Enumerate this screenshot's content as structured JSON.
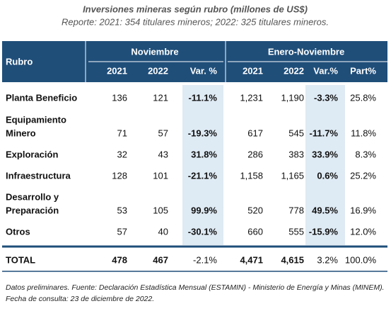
{
  "header": {
    "title": "Inversiones mineras según rubro (millones de US$)",
    "subtitle": "Reporte: 2021: 354 titulares mineros; 2022: 325 titulares mineros."
  },
  "table": {
    "group_headers": [
      "Noviembre",
      "Enero-Noviembre"
    ],
    "columns": [
      "Rubro",
      "2021",
      "2022",
      "Var. %",
      "2021",
      "2022",
      "Var.%",
      "Part%"
    ],
    "rows": [
      {
        "label": [
          "Planta Beneficio"
        ],
        "cells": [
          "136",
          "121",
          "-11.1%",
          "1,231",
          "1,190",
          "-3.3%",
          "25.8%"
        ]
      },
      {
        "label": [
          "Equipamiento",
          "Minero"
        ],
        "cells": [
          "71",
          "57",
          "-19.3%",
          "617",
          "545",
          "-11.7%",
          "11.8%"
        ]
      },
      {
        "label": [
          "Exploración"
        ],
        "cells": [
          "32",
          "43",
          "31.8%",
          "286",
          "383",
          "33.9%",
          "8.3%"
        ]
      },
      {
        "label": [
          "Infraestructura"
        ],
        "cells": [
          "128",
          "101",
          "-21.1%",
          "1,158",
          "1,165",
          "0.6%",
          "25.2%"
        ]
      },
      {
        "label": [
          "Desarrollo y",
          "Preparación"
        ],
        "cells": [
          "53",
          "105",
          "99.9%",
          "520",
          "778",
          "49.5%",
          "16.9%"
        ]
      },
      {
        "label": [
          "Otros"
        ],
        "cells": [
          "57",
          "40",
          "-30.1%",
          "660",
          "555",
          "-15.9%",
          "12.0%"
        ]
      }
    ],
    "total": {
      "label": "TOTAL",
      "cells": [
        "478",
        "467",
        "-2.1%",
        "4,471",
        "4,615",
        "3.2%",
        "100.0%"
      ]
    }
  },
  "footnotes": [
    "Datos preliminares. Fuente: Declaración Estadística Mensual (ESTAMIN) - Ministerio de Energía y Minas (MINEM).",
    "Fecha de consulta: 23 de diciembre de 2022."
  ]
}
